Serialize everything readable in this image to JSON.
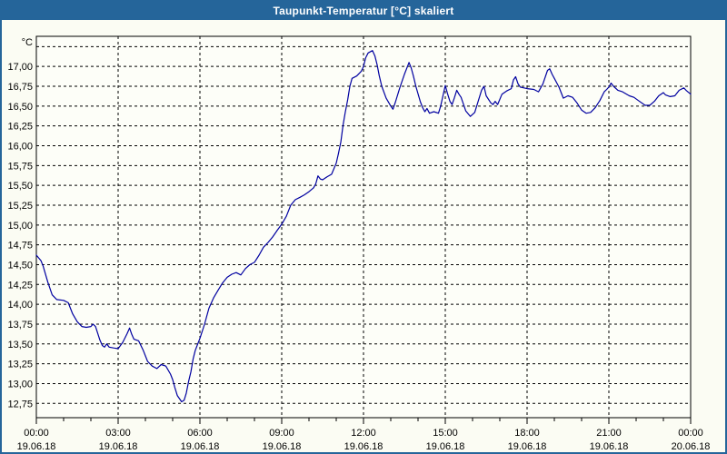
{
  "title_bar": {
    "text": "Taupunkt-Temperatur [°C] skaliert"
  },
  "colors": {
    "titlebar_bg": "#25659A",
    "window_border": "#25659A",
    "window_bg": "#FBFCF3",
    "plot_bg": "#FDFEF8",
    "grid": "#000000",
    "axis": "#000000",
    "text": "#000000",
    "series_line": "#0000A0"
  },
  "chart_data": {
    "type": "line",
    "title": "Taupunkt-Temperatur [°C] skaliert",
    "ylabel": "°C",
    "xlabel": "",
    "grid": true,
    "legend_position": "none",
    "ylim": [
      12.57,
      17.38
    ],
    "y_axis": {
      "unit": "°C",
      "tick_step": 0.25,
      "grid_min": 12.75,
      "grid_max": 17.25,
      "label_max": 17.0,
      "labels": [
        "17,00",
        "16,75",
        "16,50",
        "16,25",
        "16,00",
        "15,75",
        "15,50",
        "15,25",
        "15,00",
        "14,75",
        "14,50",
        "14,25",
        "14,00",
        "13,75",
        "13,50",
        "13,25",
        "13,00",
        "12,75"
      ]
    },
    "x_axis": {
      "hours_span": 24,
      "major_tick_hours": 3,
      "minor_tick_hours": 1,
      "labels": [
        {
          "time": "00:00",
          "date": "19.06.18"
        },
        {
          "time": "03:00",
          "date": "19.06.18"
        },
        {
          "time": "06:00",
          "date": "19.06.18"
        },
        {
          "time": "09:00",
          "date": "19.06.18"
        },
        {
          "time": "12:00",
          "date": "19.06.18"
        },
        {
          "time": "15:00",
          "date": "19.06.18"
        },
        {
          "time": "18:00",
          "date": "19.06.18"
        },
        {
          "time": "21:00",
          "date": "19.06.18"
        },
        {
          "time": "00:00",
          "date": "20.06.18"
        }
      ]
    },
    "series": [
      {
        "name": "Taupunkt-Temperatur",
        "color": "#0000A0",
        "points": [
          [
            0.0,
            14.62
          ],
          [
            0.17,
            14.55
          ],
          [
            0.25,
            14.48
          ],
          [
            0.42,
            14.28
          ],
          [
            0.58,
            14.12
          ],
          [
            0.75,
            14.06
          ],
          [
            1.0,
            14.05
          ],
          [
            1.17,
            14.02
          ],
          [
            1.33,
            13.88
          ],
          [
            1.5,
            13.78
          ],
          [
            1.67,
            13.72
          ],
          [
            1.83,
            13.71
          ],
          [
            2.0,
            13.72
          ],
          [
            2.08,
            13.75
          ],
          [
            2.17,
            13.72
          ],
          [
            2.33,
            13.55
          ],
          [
            2.42,
            13.48
          ],
          [
            2.5,
            13.46
          ],
          [
            2.58,
            13.5
          ],
          [
            2.67,
            13.46
          ],
          [
            2.83,
            13.45
          ],
          [
            3.0,
            13.44
          ],
          [
            3.17,
            13.52
          ],
          [
            3.33,
            13.63
          ],
          [
            3.42,
            13.7
          ],
          [
            3.5,
            13.62
          ],
          [
            3.58,
            13.56
          ],
          [
            3.75,
            13.54
          ],
          [
            3.92,
            13.42
          ],
          [
            4.08,
            13.28
          ],
          [
            4.25,
            13.22
          ],
          [
            4.42,
            13.19
          ],
          [
            4.58,
            13.24
          ],
          [
            4.75,
            13.22
          ],
          [
            4.92,
            13.12
          ],
          [
            5.0,
            13.05
          ],
          [
            5.08,
            12.95
          ],
          [
            5.17,
            12.85
          ],
          [
            5.33,
            12.77
          ],
          [
            5.42,
            12.79
          ],
          [
            5.5,
            12.88
          ],
          [
            5.58,
            13.02
          ],
          [
            5.67,
            13.15
          ],
          [
            5.75,
            13.31
          ],
          [
            5.83,
            13.42
          ],
          [
            5.92,
            13.5
          ],
          [
            6.0,
            13.57
          ],
          [
            6.17,
            13.75
          ],
          [
            6.33,
            13.95
          ],
          [
            6.5,
            14.08
          ],
          [
            6.67,
            14.18
          ],
          [
            6.83,
            14.27
          ],
          [
            7.0,
            14.34
          ],
          [
            7.17,
            14.38
          ],
          [
            7.33,
            14.4
          ],
          [
            7.5,
            14.37
          ],
          [
            7.67,
            14.45
          ],
          [
            7.83,
            14.5
          ],
          [
            8.0,
            14.53
          ],
          [
            8.17,
            14.62
          ],
          [
            8.33,
            14.72
          ],
          [
            8.5,
            14.78
          ],
          [
            8.67,
            14.85
          ],
          [
            8.83,
            14.93
          ],
          [
            9.0,
            15.01
          ],
          [
            9.17,
            15.11
          ],
          [
            9.33,
            15.25
          ],
          [
            9.5,
            15.32
          ],
          [
            9.67,
            15.35
          ],
          [
            9.83,
            15.38
          ],
          [
            10.0,
            15.42
          ],
          [
            10.17,
            15.47
          ],
          [
            10.25,
            15.52
          ],
          [
            10.33,
            15.62
          ],
          [
            10.42,
            15.58
          ],
          [
            10.5,
            15.57
          ],
          [
            10.67,
            15.61
          ],
          [
            10.83,
            15.64
          ],
          [
            11.0,
            15.78
          ],
          [
            11.08,
            15.9
          ],
          [
            11.17,
            16.05
          ],
          [
            11.25,
            16.26
          ],
          [
            11.33,
            16.42
          ],
          [
            11.42,
            16.58
          ],
          [
            11.5,
            16.75
          ],
          [
            11.58,
            16.85
          ],
          [
            11.75,
            16.88
          ],
          [
            11.92,
            16.94
          ],
          [
            12.0,
            17.0
          ],
          [
            12.08,
            17.11
          ],
          [
            12.17,
            17.17
          ],
          [
            12.33,
            17.2
          ],
          [
            12.42,
            17.13
          ],
          [
            12.5,
            17.02
          ],
          [
            12.58,
            16.88
          ],
          [
            12.67,
            16.75
          ],
          [
            12.83,
            16.6
          ],
          [
            13.0,
            16.5
          ],
          [
            13.08,
            16.46
          ],
          [
            13.17,
            16.55
          ],
          [
            13.33,
            16.73
          ],
          [
            13.5,
            16.9
          ],
          [
            13.67,
            17.05
          ],
          [
            13.75,
            16.98
          ],
          [
            13.83,
            16.88
          ],
          [
            13.92,
            16.75
          ],
          [
            14.08,
            16.56
          ],
          [
            14.17,
            16.48
          ],
          [
            14.25,
            16.43
          ],
          [
            14.33,
            16.47
          ],
          [
            14.42,
            16.41
          ],
          [
            14.58,
            16.43
          ],
          [
            14.75,
            16.41
          ],
          [
            14.83,
            16.5
          ],
          [
            15.0,
            16.76
          ],
          [
            15.08,
            16.66
          ],
          [
            15.17,
            16.56
          ],
          [
            15.25,
            16.52
          ],
          [
            15.33,
            16.6
          ],
          [
            15.42,
            16.7
          ],
          [
            15.5,
            16.65
          ],
          [
            15.58,
            16.61
          ],
          [
            15.75,
            16.44
          ],
          [
            15.92,
            16.37
          ],
          [
            16.08,
            16.42
          ],
          [
            16.17,
            16.52
          ],
          [
            16.33,
            16.7
          ],
          [
            16.42,
            16.75
          ],
          [
            16.5,
            16.63
          ],
          [
            16.67,
            16.54
          ],
          [
            16.75,
            16.52
          ],
          [
            16.83,
            16.56
          ],
          [
            16.92,
            16.52
          ],
          [
            17.08,
            16.65
          ],
          [
            17.25,
            16.69
          ],
          [
            17.42,
            16.72
          ],
          [
            17.5,
            16.83
          ],
          [
            17.58,
            16.87
          ],
          [
            17.67,
            16.78
          ],
          [
            17.75,
            16.74
          ],
          [
            18.0,
            16.72
          ],
          [
            18.25,
            16.71
          ],
          [
            18.42,
            16.68
          ],
          [
            18.58,
            16.78
          ],
          [
            18.75,
            16.95
          ],
          [
            18.83,
            16.97
          ],
          [
            18.92,
            16.9
          ],
          [
            19.0,
            16.85
          ],
          [
            19.17,
            16.74
          ],
          [
            19.33,
            16.6
          ],
          [
            19.5,
            16.63
          ],
          [
            19.67,
            16.61
          ],
          [
            19.83,
            16.54
          ],
          [
            20.0,
            16.45
          ],
          [
            20.17,
            16.41
          ],
          [
            20.33,
            16.42
          ],
          [
            20.5,
            16.48
          ],
          [
            20.67,
            16.57
          ],
          [
            20.83,
            16.68
          ],
          [
            20.92,
            16.71
          ],
          [
            21.0,
            16.74
          ],
          [
            21.08,
            16.79
          ],
          [
            21.17,
            16.75
          ],
          [
            21.33,
            16.7
          ],
          [
            21.5,
            16.68
          ],
          [
            21.75,
            16.63
          ],
          [
            21.92,
            16.61
          ],
          [
            22.08,
            16.57
          ],
          [
            22.33,
            16.51
          ],
          [
            22.5,
            16.51
          ],
          [
            22.67,
            16.56
          ],
          [
            22.83,
            16.63
          ],
          [
            23.0,
            16.67
          ],
          [
            23.08,
            16.64
          ],
          [
            23.25,
            16.62
          ],
          [
            23.42,
            16.63
          ],
          [
            23.58,
            16.7
          ],
          [
            23.75,
            16.73
          ],
          [
            23.83,
            16.7
          ],
          [
            24.0,
            16.65
          ]
        ]
      }
    ]
  }
}
